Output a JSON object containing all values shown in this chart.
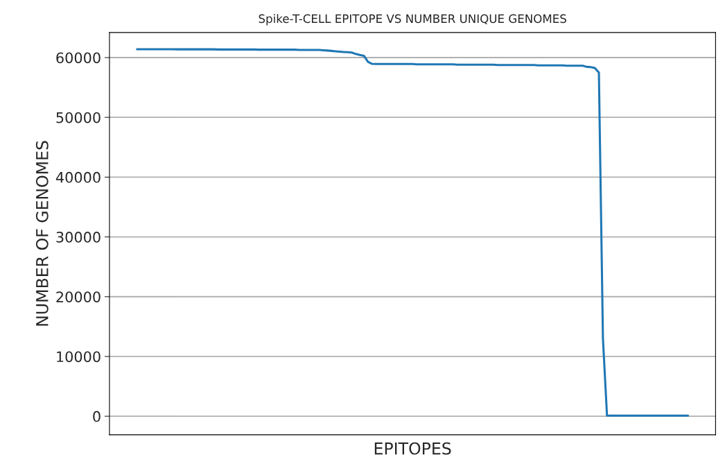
{
  "chart_data": {
    "type": "line",
    "title": "Spike-T-CELL EPITOPE VS NUMBER UNIQUE GENOMES",
    "xlabel": "EPITOPES",
    "ylabel": "NUMBER OF GENOMES",
    "categories": [
      null,
      null,
      null,
      null,
      null,
      null,
      null,
      null,
      null,
      null,
      null,
      null,
      null,
      null,
      null,
      null,
      null,
      null,
      null,
      null,
      null,
      null,
      null,
      null,
      null,
      null,
      null,
      null,
      null,
      null,
      null,
      null,
      null,
      null,
      null,
      null,
      null,
      null,
      null,
      null,
      null,
      null,
      null,
      null,
      null,
      null,
      null,
      null,
      null,
      null,
      null,
      null,
      null,
      null,
      null,
      null,
      null,
      null,
      null,
      null,
      null,
      null,
      null,
      null,
      null,
      null,
      null,
      null,
      null,
      null,
      null,
      null,
      null,
      null,
      null,
      null,
      null,
      null,
      null,
      null,
      null,
      null,
      null,
      null,
      null,
      null,
      null,
      null,
      null,
      null,
      null,
      null,
      null,
      null,
      null,
      null,
      null,
      null,
      null,
      null,
      null,
      null,
      null,
      null,
      null,
      null,
      null,
      null,
      null,
      null,
      null,
      null,
      null,
      null,
      null,
      null,
      null,
      null,
      null,
      null,
      null,
      null,
      null,
      null,
      null,
      null,
      null,
      null,
      null,
      null,
      null,
      null,
      null,
      null,
      null,
      null,
      null
    ],
    "series": [
      {
        "color": "#1f77b4",
        "values": [
          61400,
          61400,
          61400,
          61400,
          61400,
          61400,
          61400,
          61400,
          61400,
          61400,
          61380,
          61380,
          61380,
          61380,
          61380,
          61380,
          61380,
          61380,
          61380,
          61380,
          61350,
          61350,
          61350,
          61350,
          61350,
          61350,
          61350,
          61350,
          61350,
          61350,
          61320,
          61320,
          61320,
          61320,
          61320,
          61320,
          61320,
          61320,
          61320,
          61320,
          61290,
          61290,
          61290,
          61290,
          61290,
          61290,
          61230,
          61180,
          61120,
          61050,
          60990,
          60940,
          60900,
          60850,
          60600,
          60450,
          60300,
          59300,
          58950,
          58930,
          58930,
          58930,
          58930,
          58930,
          58930,
          58930,
          58930,
          58930,
          58930,
          58880,
          58880,
          58880,
          58880,
          58880,
          58880,
          58880,
          58880,
          58880,
          58880,
          58820,
          58820,
          58820,
          58820,
          58820,
          58820,
          58820,
          58820,
          58820,
          58820,
          58760,
          58760,
          58760,
          58760,
          58760,
          58760,
          58760,
          58760,
          58760,
          58760,
          58700,
          58700,
          58700,
          58700,
          58700,
          58700,
          58700,
          58640,
          58640,
          58640,
          58640,
          58640,
          58450,
          58400,
          58250,
          57500,
          13000,
          100,
          100,
          100,
          100,
          100,
          100,
          100,
          100,
          100,
          100,
          100,
          100,
          100,
          100,
          100,
          100,
          100,
          100,
          100,
          100,
          100
        ]
      }
    ],
    "ylim": [
      -3100,
      64200
    ],
    "yticks": [
      0,
      10000,
      20000,
      30000,
      40000,
      50000,
      60000
    ],
    "grid": "y",
    "legend": false
  }
}
